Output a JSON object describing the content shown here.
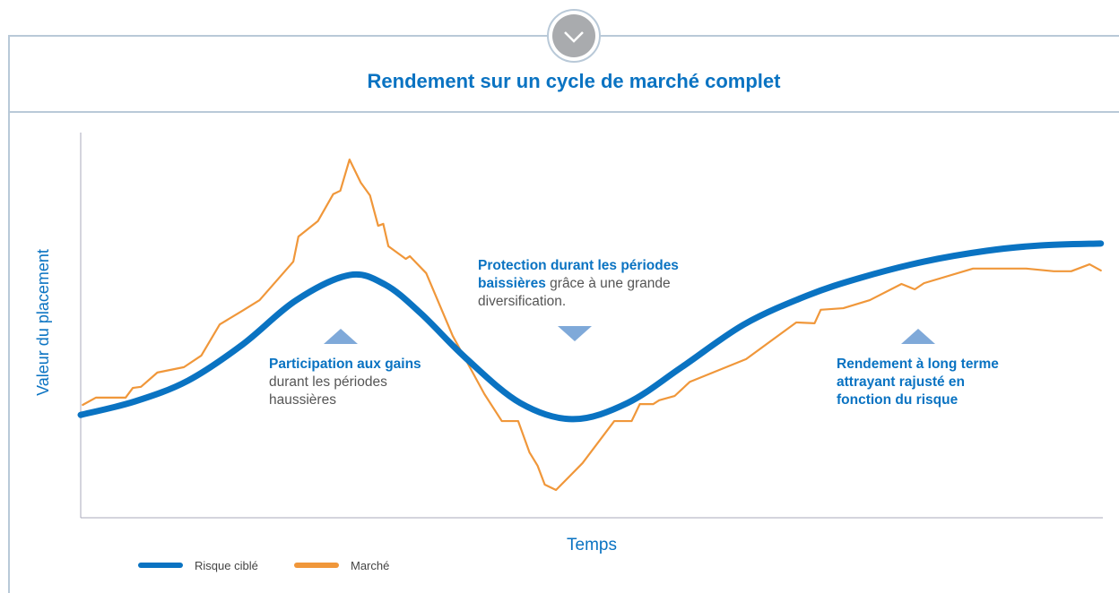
{
  "chart_data": {
    "type": "line",
    "title": "Rendement sur un cycle de marché complet",
    "x_label": "Temps",
    "y_label": "Valeur du placement",
    "xlim": [
      0,
      100
    ],
    "ylim": [
      0,
      100
    ],
    "series": [
      {
        "name": "Risque ciblé",
        "color": "#0a73c2",
        "smooth": true,
        "x": [
          0,
          5.3,
          10.5,
          15.8,
          21.1,
          26.3,
          29.8,
          33.3,
          37.7,
          43.0,
          48.2,
          53.5,
          58.8,
          64.9,
          71.1,
          76.3,
          82.5,
          88.6,
          93.9,
          99.8
        ],
        "values": [
          26.7,
          30.2,
          35.6,
          44.9,
          56.5,
          63.0,
          60.5,
          53.0,
          41.4,
          29.8,
          25.6,
          29.8,
          39.1,
          50.2,
          57.7,
          62.3,
          66.5,
          69.3,
          70.7,
          71.2
        ]
      },
      {
        "name": "Marché",
        "color": "#f0973a",
        "smooth": false,
        "x": [
          0.2,
          1.5,
          4.4,
          5.1,
          5.9,
          7.5,
          10.1,
          11.8,
          13.6,
          15.8,
          17.5,
          20.8,
          21.3,
          23.2,
          24.7,
          25.4,
          26.3,
          27.4,
          28.3,
          29.1,
          29.6,
          30.1,
          31.8,
          32.2,
          33.8,
          36.4,
          39.5,
          41.2,
          42.8,
          43.9,
          44.7,
          45.4,
          46.5,
          49.1,
          52.2,
          53.9,
          54.7,
          56.0,
          56.6,
          58.1,
          59.6,
          65.1,
          70.0,
          71.8,
          72.4,
          74.6,
          77.2,
          80.3,
          81.6,
          82.5,
          87.3,
          92.5,
          95.2,
          96.9,
          98.7,
          99.8
        ],
        "values": [
          29.3,
          31.2,
          31.2,
          33.7,
          34.0,
          37.7,
          39.1,
          42.1,
          50.2,
          53.7,
          56.5,
          66.5,
          73.0,
          77.0,
          84.0,
          84.9,
          93.0,
          87.0,
          83.7,
          75.8,
          76.3,
          70.5,
          67.2,
          67.9,
          63.5,
          47.2,
          32.1,
          25.1,
          25.1,
          17.0,
          13.5,
          8.6,
          7.2,
          14.2,
          25.1,
          25.1,
          29.5,
          29.5,
          30.5,
          31.6,
          35.3,
          41.2,
          50.7,
          50.5,
          54.0,
          54.4,
          56.5,
          60.7,
          59.3,
          60.9,
          64.7,
          64.7,
          64.0,
          64.0,
          65.8,
          64.2
        ]
      }
    ],
    "annotations": [
      {
        "bold": "Participation aux gains",
        "text": "durant les périodes haussières"
      },
      {
        "bold": "Protection durant les périodes baissières",
        "text": "grâce à une grande diversification."
      },
      {
        "bold": "Rendement à long terme attrayant rajusté en fonction du risque"
      }
    ]
  }
}
